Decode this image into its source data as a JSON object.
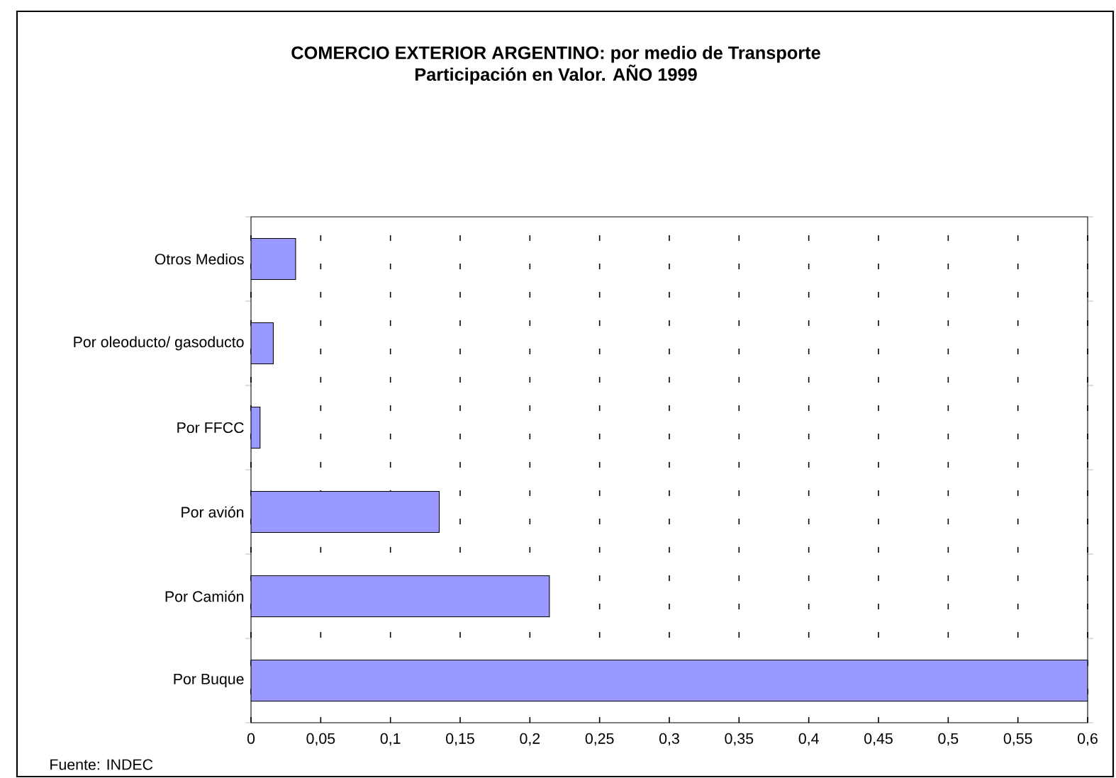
{
  "chart_data": {
    "type": "bar",
    "orientation": "horizontal",
    "title": "COMERCIO EXTERIOR ARGENTINO: por medio de Transporte\nParticipación en Valor. AÑO 1999",
    "categories": [
      "Otros Medios",
      "Por oleoducto/ gasoducto",
      "Por FFCC",
      "Por avión",
      "Por Camión",
      "Por Buque"
    ],
    "values": [
      0.032,
      0.016,
      0.0065,
      0.135,
      0.214,
      0.6
    ],
    "color": "#9999ff",
    "xlim": [
      0,
      0.6
    ],
    "xticks": [
      0,
      {
        "value": 0.05,
        "label": "0,05"
      },
      {
        "value": 0.1,
        "label": "0,1"
      },
      {
        "value": 0.15,
        "label": "0,15"
      },
      {
        "value": 0.2,
        "label": "0,2"
      },
      {
        "value": 0.25,
        "label": "0,25"
      },
      {
        "value": 0.3,
        "label": "0,3"
      },
      {
        "value": 0.35,
        "label": "0,35"
      },
      {
        "value": 0.4,
        "label": "0,4"
      },
      {
        "value": 0.45,
        "label": "0,45"
      },
      {
        "value": 0.5,
        "label": "0,5"
      },
      {
        "value": 0.55,
        "label": "0,55"
      },
      {
        "value": 0.6,
        "label": "0,6"
      }
    ],
    "grid": "x",
    "annotations": [
      "Fuente: INDEC"
    ]
  }
}
